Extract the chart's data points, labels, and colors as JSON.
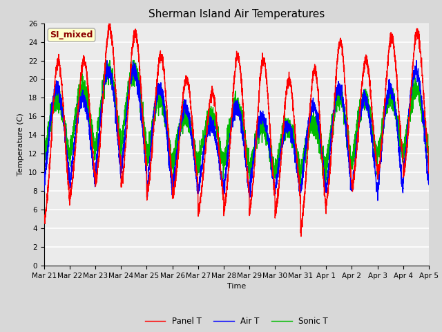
{
  "title": "Sherman Island Air Temperatures",
  "xlabel": "Time",
  "ylabel": "Temperature (C)",
  "ylim": [
    0,
    26
  ],
  "annotation": "SI_mixed",
  "annotation_color": "#8B0000",
  "annotation_bg": "#FFFFCC",
  "annotation_border": "#AAAAAA",
  "x_tick_labels": [
    "Mar 21",
    "Mar 22",
    "Mar 23",
    "Mar 24",
    "Mar 25",
    "Mar 26",
    "Mar 27",
    "Mar 28",
    "Mar 29",
    "Mar 30",
    "Mar 31",
    "Apr 1",
    "Apr 2",
    "Apr 3",
    "Apr 4",
    "Apr 5"
  ],
  "colors": {
    "panel_t": "#FF0000",
    "air_t": "#0000FF",
    "sonic_t": "#00BB00"
  },
  "legend_labels": [
    "Panel T",
    "Air T",
    "Sonic T"
  ],
  "bg_color": "#D8D8D8",
  "plot_bg": "#EBEBEB",
  "grid_color": "#FFFFFF",
  "linewidth": 1.0,
  "days": 15,
  "yticks": [
    0,
    2,
    4,
    6,
    8,
    10,
    12,
    14,
    16,
    18,
    20,
    22,
    24,
    26
  ]
}
